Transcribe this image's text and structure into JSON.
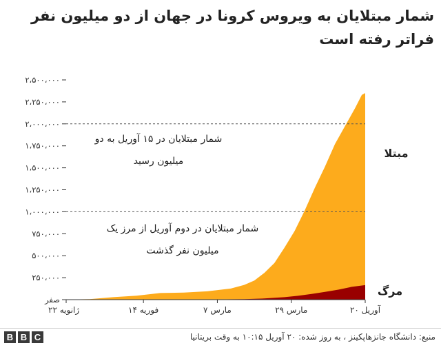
{
  "title": "شمار مبتلایان به ویروس کرونا در جهان از دو میلیون نفر فراتر رفته است",
  "source": "منبع: دانشگاه جانزهاپکینز ، به روز شده: ۲۰ آوریل ۱۰:۱۵ به وقت بریتانیا",
  "logo": {
    "letters": [
      "B",
      "B",
      "C"
    ]
  },
  "colors": {
    "cases": "#fdab1c",
    "deaths": "#990000",
    "axis": "#333333",
    "gridline": "#cccccc"
  },
  "chart_data": {
    "type": "area",
    "title": "شمار مبتلایان به ویروس کرونا در جهان از دو میلیون نفر فراتر رفته است",
    "xlabel": "",
    "ylabel": "",
    "x_ticks": [
      {
        "date": "2020-01-22",
        "label": "۲۲ ژانویه"
      },
      {
        "date": "2020-02-14",
        "label": "۱۴ فوریه"
      },
      {
        "date": "2020-03-07",
        "label": "۷ مارس"
      },
      {
        "date": "2020-03-29",
        "label": "۲۹ مارس"
      },
      {
        "date": "2020-04-20",
        "label": "۲۰ آوریل"
      }
    ],
    "xlim": [
      "2020-01-22",
      "2020-04-20"
    ],
    "ylim": [
      0,
      2500000
    ],
    "y_ticks": [
      {
        "value": 0,
        "label": "صفر"
      },
      {
        "value": 250000,
        "label": "۲۵۰،۰۰۰"
      },
      {
        "value": 500000,
        "label": "۵۰۰،۰۰۰"
      },
      {
        "value": 750000,
        "label": "۷۵۰،۰۰۰"
      },
      {
        "value": 1000000,
        "label": "۱،۰۰۰،۰۰۰"
      },
      {
        "value": 1250000,
        "label": "۱،۲۵۰،۰۰۰"
      },
      {
        "value": 1500000,
        "label": "۱،۵۰۰،۰۰۰"
      },
      {
        "value": 1750000,
        "label": "۱،۷۵۰،۰۰۰"
      },
      {
        "value": 2000000,
        "label": "۲،۰۰۰،۰۰۰"
      },
      {
        "value": 2250000,
        "label": "۲،۲۵۰،۰۰۰"
      },
      {
        "value": 2500000,
        "label": "۲،۵۰۰،۰۰۰"
      }
    ],
    "grid": false,
    "series": [
      {
        "key": "cases",
        "name": "مبتلا",
        "color": "#fdab1c",
        "points": [
          [
            "2020-01-22",
            555
          ],
          [
            "2020-01-29",
            6000
          ],
          [
            "2020-02-05",
            28000
          ],
          [
            "2020-02-12",
            45000
          ],
          [
            "2020-02-19",
            75000
          ],
          [
            "2020-02-26",
            81000
          ],
          [
            "2020-03-04",
            95000
          ],
          [
            "2020-03-11",
            126000
          ],
          [
            "2020-03-15",
            168000
          ],
          [
            "2020-03-18",
            218000
          ],
          [
            "2020-03-21",
            305000
          ],
          [
            "2020-03-24",
            418000
          ],
          [
            "2020-03-27",
            593000
          ],
          [
            "2020-03-30",
            782000
          ],
          [
            "2020-04-02",
            1014000
          ],
          [
            "2020-04-05",
            1273000
          ],
          [
            "2020-04-08",
            1512000
          ],
          [
            "2020-04-11",
            1770000
          ],
          [
            "2020-04-14",
            1975000
          ],
          [
            "2020-04-17",
            2180000
          ],
          [
            "2020-04-19",
            2330000
          ],
          [
            "2020-04-20",
            2350000
          ]
        ]
      },
      {
        "key": "deaths",
        "name": "مرگ",
        "color": "#990000",
        "points": [
          [
            "2020-01-22",
            17
          ],
          [
            "2020-02-12",
            1100
          ],
          [
            "2020-03-07",
            3500
          ],
          [
            "2020-03-15",
            6500
          ],
          [
            "2020-03-21",
            13000
          ],
          [
            "2020-03-27",
            28000
          ],
          [
            "2020-03-31",
            44000
          ],
          [
            "2020-04-04",
            65000
          ],
          [
            "2020-04-08",
            88000
          ],
          [
            "2020-04-12",
            114000
          ],
          [
            "2020-04-16",
            146000
          ],
          [
            "2020-04-20",
            165000
          ]
        ]
      }
    ],
    "reference_lines": [
      {
        "value": 2000000,
        "style": "dashed"
      },
      {
        "value": 1000000,
        "style": "dashed"
      }
    ],
    "annotations": [
      {
        "lines": [
          "شمار مبتلایان در ۱۵ آوریل به دو",
          "میلیون رسید"
        ]
      },
      {
        "lines": [
          "شمار مبتلایان در دوم آوریل از مرز یک",
          "میلیون نفر گذشت"
        ]
      }
    ]
  }
}
